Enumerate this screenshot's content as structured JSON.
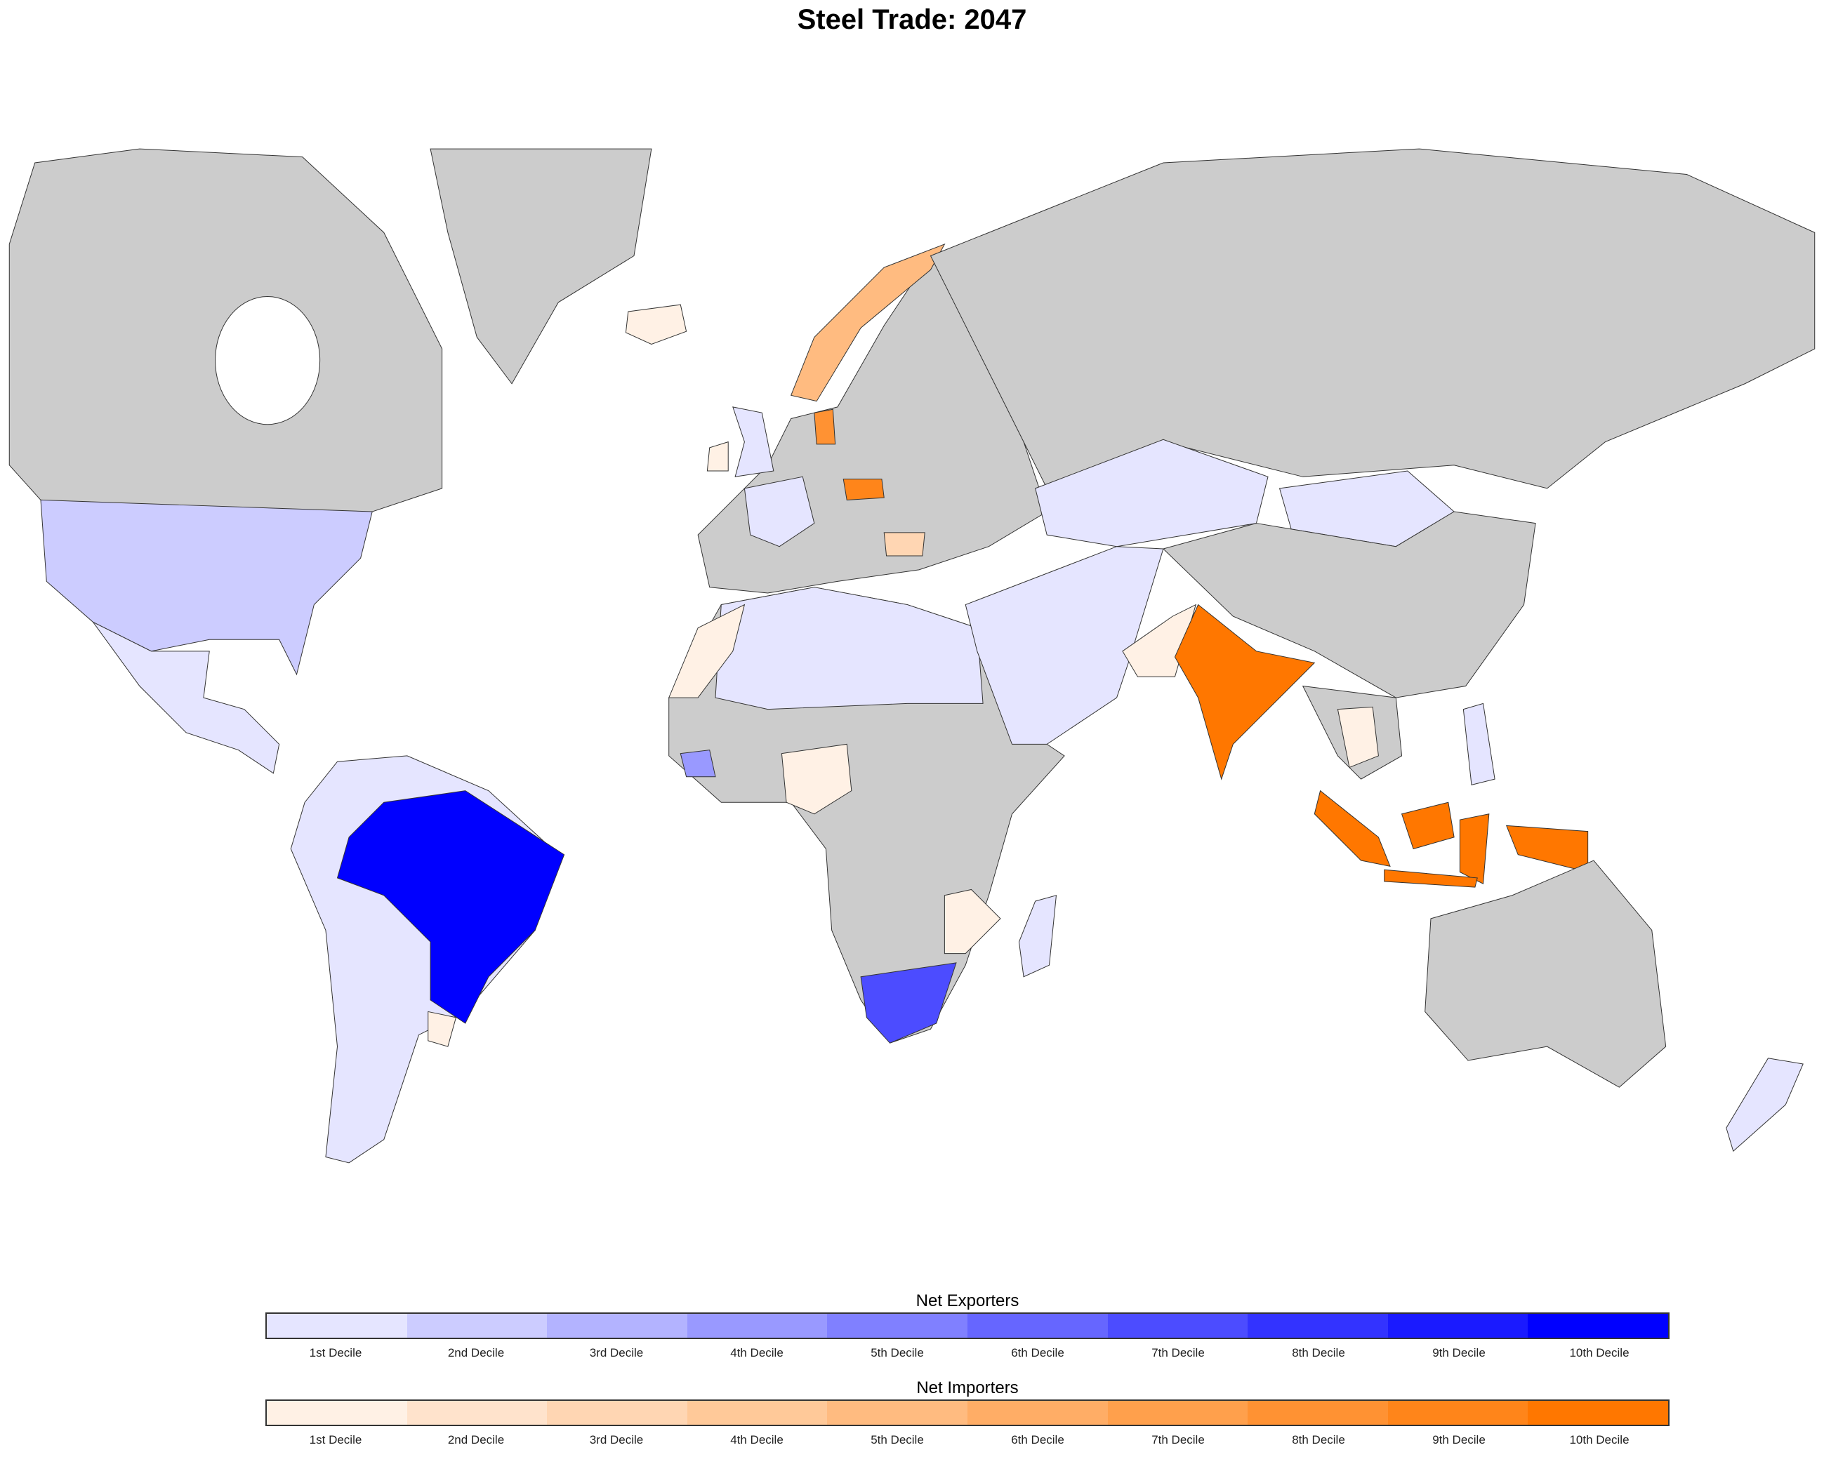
{
  "title": "Steel Trade: 2047",
  "no_data_color": "#cccccc",
  "legend": {
    "exporters": {
      "title": "Net Exporters",
      "labels": [
        "1st Decile",
        "2nd Decile",
        "3rd Decile",
        "4th Decile",
        "5th Decile",
        "6th Decile",
        "7th Decile",
        "8th Decile",
        "9th Decile",
        "10th Decile"
      ],
      "colors": [
        "#e5e5ff",
        "#ccccff",
        "#b3b3ff",
        "#9999ff",
        "#8080ff",
        "#6666ff",
        "#4c4cff",
        "#3333ff",
        "#1a1aff",
        "#0000ff"
      ]
    },
    "importers": {
      "title": "Net Importers",
      "labels": [
        "1st Decile",
        "2nd Decile",
        "3rd Decile",
        "4th Decile",
        "5th Decile",
        "6th Decile",
        "7th Decile",
        "8th Decile",
        "9th Decile",
        "10th Decile"
      ],
      "colors": [
        "#fff1e5",
        "#ffe3cc",
        "#ffd6b3",
        "#ffc999",
        "#ffbb80",
        "#ffad66",
        "#ffa04c",
        "#ff9233",
        "#ff851a",
        "#ff7700"
      ]
    }
  },
  "regions": [
    {
      "id": "canada",
      "group": "none",
      "decile": 0
    },
    {
      "id": "greenland",
      "group": "none",
      "decile": 0
    },
    {
      "id": "usa",
      "group": "exporters",
      "decile": 2
    },
    {
      "id": "mexico-central-america",
      "group": "exporters",
      "decile": 1
    },
    {
      "id": "south-america",
      "group": "exporters",
      "decile": 1
    },
    {
      "id": "brazil",
      "group": "exporters",
      "decile": 10
    },
    {
      "id": "uruguay",
      "group": "importers",
      "decile": 1
    },
    {
      "id": "africa",
      "group": "none",
      "decile": 0
    },
    {
      "id": "north-africa",
      "group": "exporters",
      "decile": 1
    },
    {
      "id": "morocco",
      "group": "importers",
      "decile": 1
    },
    {
      "id": "guinea",
      "group": "exporters",
      "decile": 4
    },
    {
      "id": "nigeria",
      "group": "importers",
      "decile": 1
    },
    {
      "id": "south-africa",
      "group": "exporters",
      "decile": 7
    },
    {
      "id": "madagascar",
      "group": "exporters",
      "decile": 1
    },
    {
      "id": "mozambique",
      "group": "importers",
      "decile": 1
    },
    {
      "id": "europe",
      "group": "none",
      "decile": 0
    },
    {
      "id": "france",
      "group": "exporters",
      "decile": 1
    },
    {
      "id": "uk",
      "group": "exporters",
      "decile": 1
    },
    {
      "id": "ireland",
      "group": "importers",
      "decile": 1
    },
    {
      "id": "iceland",
      "group": "importers",
      "decile": 1
    },
    {
      "id": "norway",
      "group": "importers",
      "decile": 5
    },
    {
      "id": "denmark",
      "group": "importers",
      "decile": 8
    },
    {
      "id": "czechia",
      "group": "importers",
      "decile": 9
    },
    {
      "id": "bulgaria",
      "group": "importers",
      "decile": 3
    },
    {
      "id": "russia",
      "group": "none",
      "decile": 0
    },
    {
      "id": "kazakhstan",
      "group": "exporters",
      "decile": 1
    },
    {
      "id": "mongolia",
      "group": "exporters",
      "decile": 1
    },
    {
      "id": "china",
      "group": "none",
      "decile": 0
    },
    {
      "id": "middle-east",
      "group": "exporters",
      "decile": 1
    },
    {
      "id": "pakistan",
      "group": "importers",
      "decile": 1
    },
    {
      "id": "india",
      "group": "importers",
      "decile": 10
    },
    {
      "id": "southeast-asia",
      "group": "none",
      "decile": 0
    },
    {
      "id": "thailand",
      "group": "importers",
      "decile": 1
    },
    {
      "id": "philippines",
      "group": "exporters",
      "decile": 1
    },
    {
      "id": "indonesia",
      "group": "importers",
      "decile": 10
    },
    {
      "id": "australia",
      "group": "none",
      "decile": 0
    },
    {
      "id": "new-zealand",
      "group": "exporters",
      "decile": 1
    }
  ]
}
